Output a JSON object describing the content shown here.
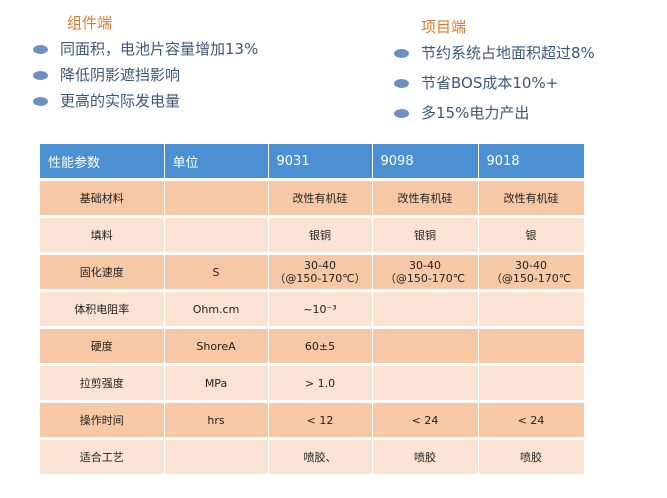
{
  "left_panel": {
    "title": "组件端",
    "items": [
      "同面积，电池片容量增加13%",
      "降低阴影遮挡影响",
      "更高的实际发电量"
    ]
  },
  "right_panel": {
    "title": "项目端",
    "items": [
      "节约系统占地面积超过8%",
      "节省BOS成本10%+",
      "多15%电力产出"
    ]
  },
  "table": {
    "headers": [
      "性能参数",
      "单位",
      "9031",
      "9098",
      "9018"
    ],
    "rows": [
      {
        "param": "基础材料",
        "unit": "",
        "v9031": "改性有机硅",
        "v9098": "改性有机硅",
        "v9018": "改性有机硅"
      },
      {
        "param": "填料",
        "unit": "",
        "v9031": "银铜",
        "v9098": "银铜",
        "v9018": "银"
      },
      {
        "param": "固化速度",
        "unit": "S",
        "v9031": "30-40",
        "v9031_b": "（@150-170℃）",
        "v9098": "30-40",
        "v9098_b": "（@150-170℃",
        "v9018": "30-40",
        "v9018_b": "（@150-170℃"
      },
      {
        "param": "体积电阻率",
        "unit": "Ohm.cm",
        "v9031": "~10⁻³",
        "v9098": "",
        "v9018": ""
      },
      {
        "param": "硬度",
        "unit": "ShoreA",
        "v9031": "60±5",
        "v9098": "",
        "v9018": ""
      },
      {
        "param": "拉剪强度",
        "unit": "MPa",
        "v9031": "> 1.0",
        "v9098": "",
        "v9018": ""
      },
      {
        "param": "操作时间",
        "unit": "hrs",
        "v9031": "< 12",
        "v9098": "< 24",
        "v9018": "< 24"
      },
      {
        "param": "适合工艺",
        "unit": "",
        "v9031": "喷胶、",
        "v9098": "喷胶",
        "v9018": "喷胶"
      }
    ]
  },
  "colors": {
    "header_bg": "#4a90d2",
    "row_dark": "#f7c8a5",
    "row_light": "#fbe3d3",
    "title": "#e07a2e",
    "bullet": "#6d8fc4"
  }
}
